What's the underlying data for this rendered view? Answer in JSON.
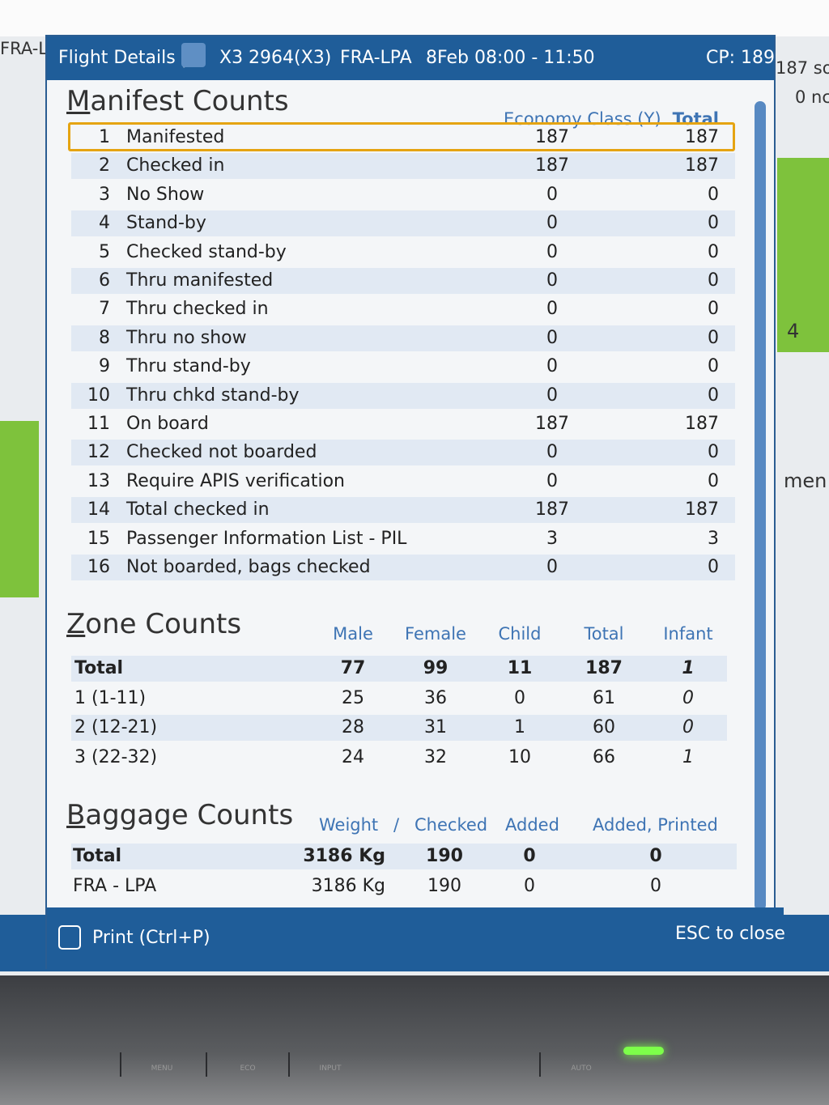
{
  "header": {
    "left_fragment": "FRA-L",
    "title": "Flight Details |",
    "flight": "X3 2964(X3)",
    "route": "FRA-LPA",
    "schedule": "8Feb 08:00 - 11:50",
    "cp": "CP: 189"
  },
  "background": {
    "sold": "187 so",
    "no": "0 nc",
    "count": "4",
    "side": "men"
  },
  "manifest": {
    "title": "Manifest Counts",
    "columns": [
      "Economy Class (Y)",
      "Total"
    ],
    "rows": [
      [
        1,
        "Manifested",
        187,
        187
      ],
      [
        2,
        "Checked in",
        187,
        187
      ],
      [
        3,
        "No Show",
        0,
        0
      ],
      [
        4,
        "Stand-by",
        0,
        0
      ],
      [
        5,
        "Checked stand-by",
        0,
        0
      ],
      [
        6,
        "Thru manifested",
        0,
        0
      ],
      [
        7,
        "Thru checked in",
        0,
        0
      ],
      [
        8,
        "Thru no show",
        0,
        0
      ],
      [
        9,
        "Thru stand-by",
        0,
        0
      ],
      [
        10,
        "Thru chkd stand-by",
        0,
        0
      ],
      [
        11,
        "On board",
        187,
        187
      ],
      [
        12,
        "Checked not boarded",
        0,
        0
      ],
      [
        13,
        "Require APIS verification",
        0,
        0
      ],
      [
        14,
        "Total checked in",
        187,
        187
      ],
      [
        15,
        "Passenger Information List - PIL",
        3,
        3
      ],
      [
        16,
        "Not boarded, bags checked",
        0,
        0
      ]
    ]
  },
  "zone": {
    "title": "Zone Counts",
    "columns": [
      "Male",
      "Female",
      "Child",
      "Total",
      "Infant"
    ],
    "rows": [
      [
        "Total",
        77,
        99,
        11,
        187,
        1
      ],
      [
        "1 (1-11)",
        25,
        36,
        0,
        61,
        0
      ],
      [
        "2 (12-21)",
        28,
        31,
        1,
        60,
        0
      ],
      [
        "3 (22-32)",
        24,
        32,
        10,
        66,
        1
      ]
    ]
  },
  "baggage": {
    "title": "Baggage Counts",
    "columns": [
      "Weight",
      "/",
      "Checked",
      "Added",
      "Added, Printed"
    ],
    "rows": [
      [
        "Total",
        "3186 Kg",
        190,
        0,
        0
      ],
      [
        "FRA - LPA",
        "3186 Kg",
        190,
        0,
        0
      ]
    ]
  },
  "footer": {
    "print": "Print (Ctrl+P)",
    "close": "ESC to close"
  },
  "monitor": {
    "buttons": [
      "MENU",
      "ECO",
      "INPUT",
      "AUTO"
    ]
  }
}
